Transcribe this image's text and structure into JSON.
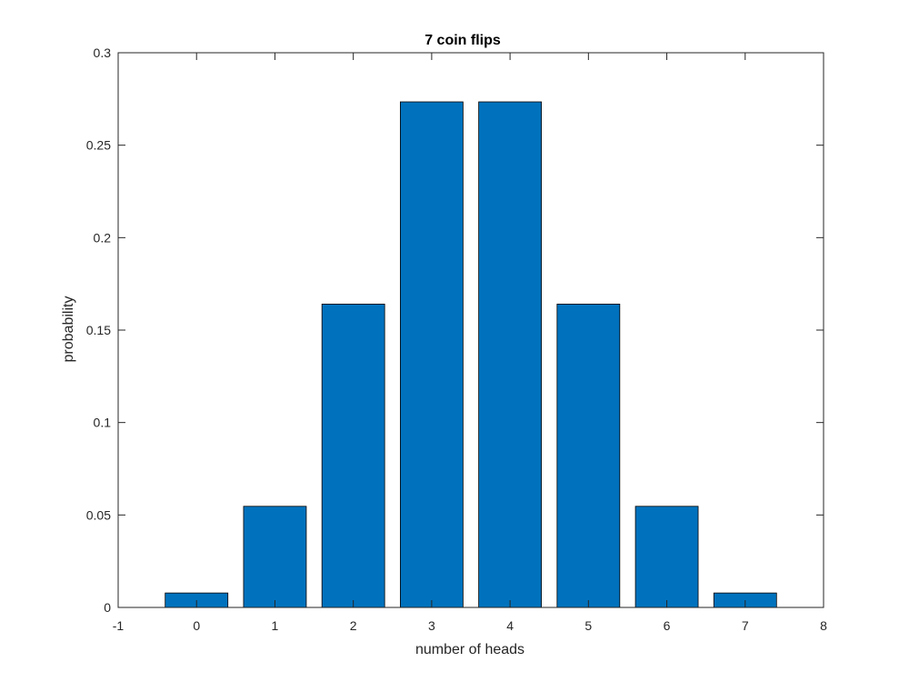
{
  "chart_data": {
    "type": "bar",
    "title": "7 coin flips",
    "xlabel": "number of heads",
    "ylabel": "probability",
    "x": [
      0,
      1,
      2,
      3,
      4,
      5,
      6,
      7
    ],
    "values": [
      0.0078125,
      0.0546875,
      0.1640625,
      0.2734375,
      0.2734375,
      0.1640625,
      0.0546875,
      0.0078125
    ],
    "xlim": [
      -1,
      8
    ],
    "ylim": [
      0,
      0.3
    ],
    "xticks": [
      -1,
      0,
      1,
      2,
      3,
      4,
      5,
      6,
      7,
      8
    ],
    "xtick_labels": [
      "-1",
      "0",
      "1",
      "2",
      "3",
      "4",
      "5",
      "6",
      "7",
      "8"
    ],
    "yticks": [
      0,
      0.05,
      0.1,
      0.15,
      0.2,
      0.25,
      0.3
    ],
    "ytick_labels": [
      "0",
      "0.05",
      "0.1",
      "0.15",
      "0.2",
      "0.25",
      "0.3"
    ],
    "bar_color": "#0072BD",
    "bar_edge_color": "#000000",
    "axis_color": "#262626",
    "grid": false,
    "legend": false
  }
}
